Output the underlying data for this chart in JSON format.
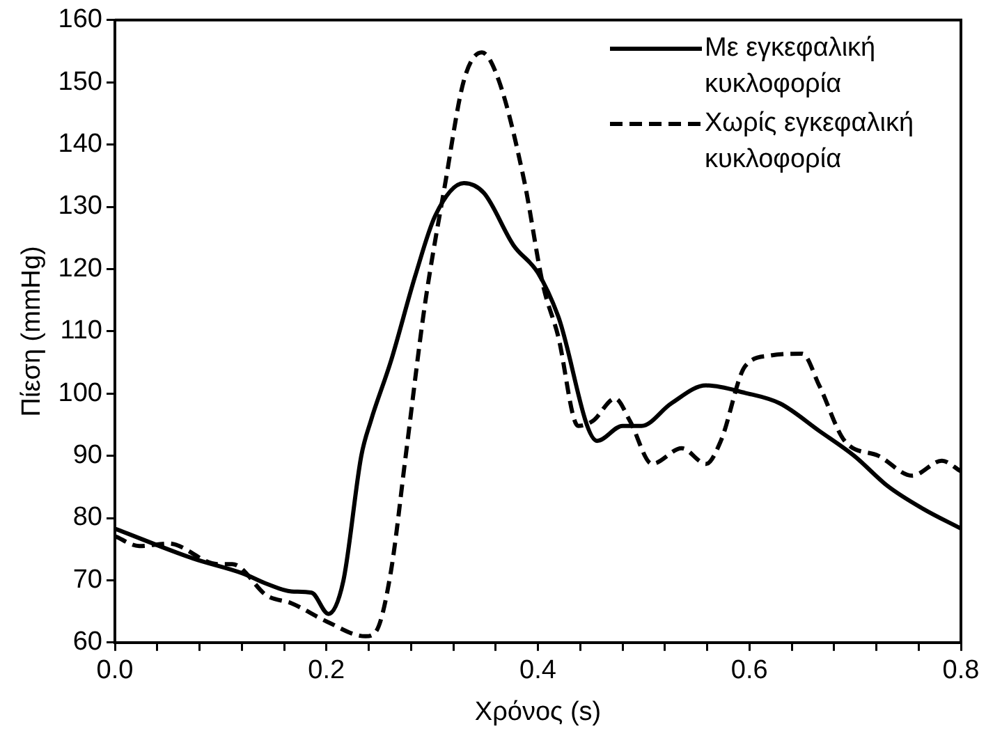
{
  "chart_data": {
    "type": "line",
    "xlabel": "Χρόνος (s)",
    "ylabel": "Πίεση (mmHg)",
    "xlim": [
      0,
      0.8
    ],
    "ylim": [
      60,
      160
    ],
    "xticks": [
      {
        "value": 0,
        "label": "0.0"
      },
      {
        "value": 0.04,
        "label": null
      },
      {
        "value": 0.08,
        "label": null
      },
      {
        "value": 0.12,
        "label": null
      },
      {
        "value": 0.16,
        "label": null
      },
      0.2,
      {
        "value": 0.24,
        "label": null
      },
      {
        "value": 0.28,
        "label": null
      },
      {
        "value": 0.32,
        "label": null
      },
      {
        "value": 0.36,
        "label": null
      },
      0.4,
      {
        "value": 0.44,
        "label": null
      },
      {
        "value": 0.48,
        "label": null
      },
      {
        "value": 0.52,
        "label": null
      },
      {
        "value": 0.56,
        "label": null
      },
      0.6,
      {
        "value": 0.64,
        "label": null
      },
      {
        "value": 0.68,
        "label": null
      },
      {
        "value": 0.72,
        "label": null
      },
      {
        "value": 0.76,
        "label": null
      },
      0.8
    ],
    "yticks": [
      60,
      70,
      80,
      90,
      100,
      110,
      120,
      130,
      140,
      150,
      160
    ],
    "grid": false,
    "legend": "top right",
    "marker": "none",
    "series": [
      {
        "name": "Με εγκεφαλική κυκλοφορία",
        "color": "#000000",
        "line_style": "solid",
        "x": [
          0,
          0.074,
          0.121,
          0.144,
          0.167,
          0.186,
          0.202,
          0.216,
          0.233,
          0.242,
          0.261,
          0.284,
          0.303,
          0.33,
          0.349,
          0.377,
          0.4,
          0.419,
          0.456,
          0.48,
          0.498,
          0.526,
          0.559,
          0.596,
          0.629,
          0.666,
          0.699,
          0.731,
          0.764,
          0.8
        ],
        "values": [
          78.3,
          73.5,
          71.1,
          69.4,
          68.2,
          68,
          64.6,
          69.9,
          90,
          95.6,
          105.2,
          118.9,
          128.6,
          133.8,
          132.2,
          123.8,
          119.4,
          112.5,
          92.4,
          94.8,
          94.8,
          98.4,
          101.3,
          100.1,
          98.4,
          94,
          90,
          85.1,
          81.5,
          78.3
        ]
      },
      {
        "name": "Χωρίς εγκεφαλική κυκλοφορία",
        "color": "#000000",
        "line_style": "dashed",
        "x": [
          0,
          0.023,
          0.051,
          0.097,
          0.111,
          0.144,
          0.167,
          0.2,
          0.237,
          0.247,
          0.261,
          0.275,
          0.293,
          0.312,
          0.33,
          0.347,
          0.363,
          0.387,
          0.405,
          0.419,
          0.438,
          0.452,
          0.473,
          0.487,
          0.508,
          0.536,
          0.559,
          0.573,
          0.596,
          0.62,
          0.65,
          0.666,
          0.69,
          0.722,
          0.754,
          0.782,
          0.8
        ],
        "values": [
          77.1,
          75.5,
          75.9,
          72.6,
          72.6,
          67.5,
          66.3,
          63.4,
          61,
          61.8,
          71.4,
          90,
          114.1,
          133.4,
          150.3,
          154.8,
          150.3,
          134.2,
          117.3,
          109.3,
          94.8,
          95.6,
          99.2,
          95.6,
          88.7,
          91.2,
          88.7,
          92.4,
          104.4,
          106.1,
          106.4,
          101.3,
          92.4,
          90,
          86.8,
          89.2,
          87.5
        ]
      }
    ]
  }
}
